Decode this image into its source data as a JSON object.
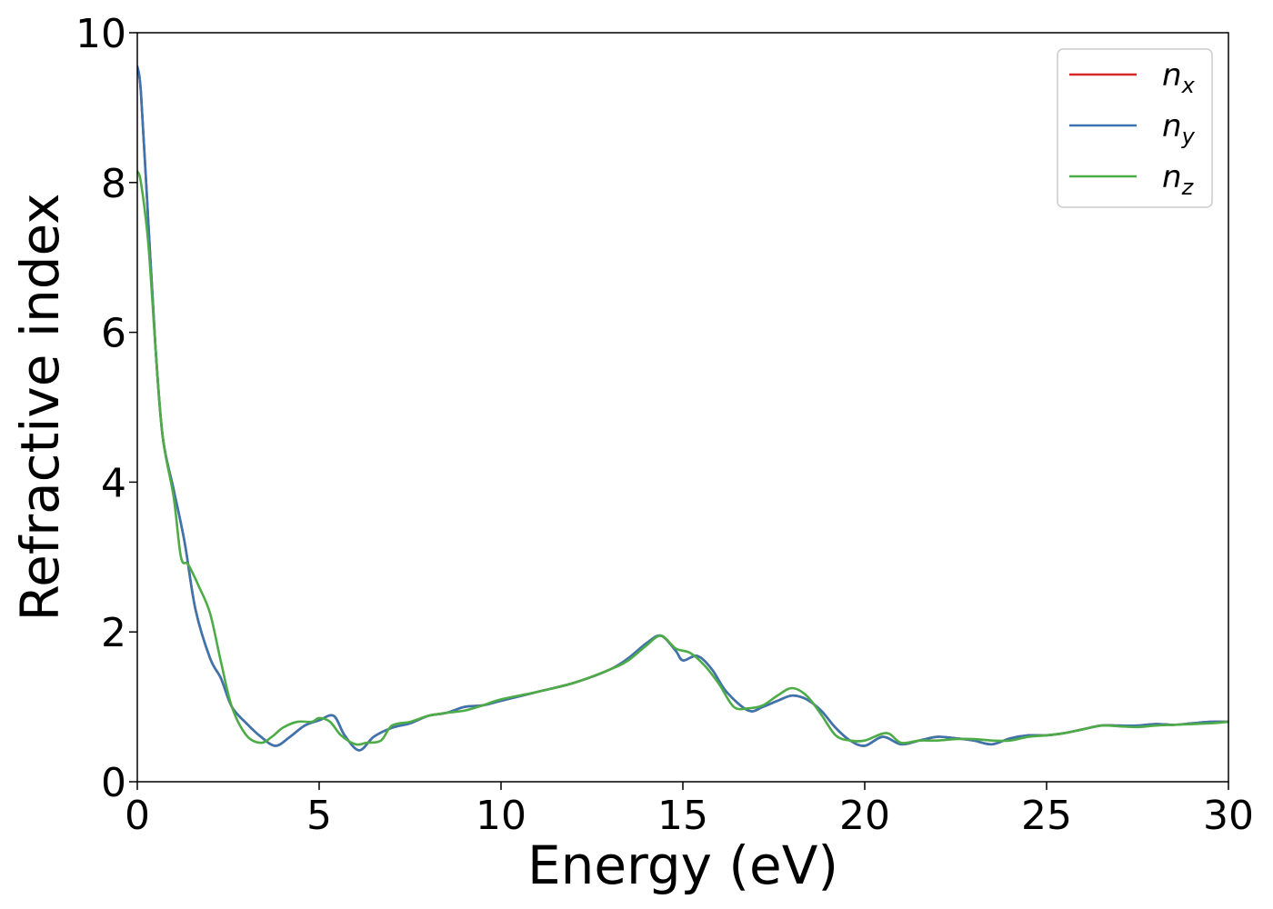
{
  "chart_data": {
    "type": "line",
    "title": "",
    "xlabel": "Energy (eV)",
    "ylabel": "Refractive index",
    "xlim": [
      0,
      30
    ],
    "ylim": [
      0,
      10
    ],
    "xticks": [
      0,
      5,
      10,
      15,
      20,
      25,
      30
    ],
    "yticks": [
      0,
      2,
      4,
      6,
      8,
      10
    ],
    "grid": false,
    "legend_position": "top-right",
    "series": [
      {
        "name": "n",
        "subscript": "x",
        "color": "#d62728",
        "x": [
          0,
          0.1,
          0.3,
          0.5,
          0.7,
          1.0,
          1.3,
          1.6,
          2.0,
          2.3,
          2.6,
          3.0,
          3.4,
          3.8,
          4.2,
          4.6,
          5.0,
          5.4,
          5.7,
          6.1,
          6.5,
          7.0,
          7.5,
          8.0,
          8.5,
          9.0,
          9.5,
          10.0,
          11.0,
          12.0,
          13.0,
          13.5,
          14.0,
          14.4,
          14.8,
          15.0,
          15.4,
          15.8,
          16.2,
          16.8,
          17.2,
          17.6,
          18.0,
          18.4,
          18.8,
          19.2,
          19.6,
          20.0,
          20.5,
          21.0,
          21.5,
          22.0,
          22.5,
          23.0,
          23.5,
          24.0,
          24.5,
          25.0,
          25.5,
          26.0,
          26.5,
          27.0,
          27.5,
          28.0,
          28.5,
          29.0,
          29.5,
          30.0
        ],
        "y": [
          9.55,
          9.2,
          7.5,
          5.8,
          4.6,
          3.9,
          3.2,
          2.3,
          1.65,
          1.38,
          1.0,
          0.78,
          0.6,
          0.48,
          0.6,
          0.75,
          0.82,
          0.88,
          0.62,
          0.42,
          0.6,
          0.72,
          0.78,
          0.88,
          0.92,
          1.0,
          1.02,
          1.08,
          1.2,
          1.32,
          1.5,
          1.65,
          1.85,
          1.95,
          1.75,
          1.62,
          1.68,
          1.5,
          1.2,
          0.95,
          1.0,
          1.08,
          1.15,
          1.1,
          0.95,
          0.72,
          0.55,
          0.48,
          0.6,
          0.5,
          0.55,
          0.6,
          0.58,
          0.55,
          0.5,
          0.58,
          0.62,
          0.62,
          0.65,
          0.7,
          0.75,
          0.75,
          0.75,
          0.77,
          0.76,
          0.78,
          0.8,
          0.8
        ]
      },
      {
        "name": "n",
        "subscript": "y",
        "color": "#3b75af",
        "x": [
          0,
          0.1,
          0.3,
          0.5,
          0.7,
          1.0,
          1.3,
          1.6,
          2.0,
          2.3,
          2.6,
          3.0,
          3.4,
          3.8,
          4.2,
          4.6,
          5.0,
          5.4,
          5.7,
          6.1,
          6.5,
          7.0,
          7.5,
          8.0,
          8.5,
          9.0,
          9.5,
          10.0,
          11.0,
          12.0,
          13.0,
          13.5,
          14.0,
          14.4,
          14.8,
          15.0,
          15.4,
          15.8,
          16.2,
          16.8,
          17.2,
          17.6,
          18.0,
          18.4,
          18.8,
          19.2,
          19.6,
          20.0,
          20.5,
          21.0,
          21.5,
          22.0,
          22.5,
          23.0,
          23.5,
          24.0,
          24.5,
          25.0,
          25.5,
          26.0,
          26.5,
          27.0,
          27.5,
          28.0,
          28.5,
          29.0,
          29.5,
          30.0
        ],
        "y": [
          9.55,
          9.2,
          7.5,
          5.8,
          4.6,
          3.9,
          3.2,
          2.3,
          1.65,
          1.38,
          1.0,
          0.78,
          0.6,
          0.48,
          0.6,
          0.75,
          0.82,
          0.88,
          0.62,
          0.42,
          0.6,
          0.72,
          0.78,
          0.88,
          0.92,
          1.0,
          1.02,
          1.08,
          1.2,
          1.32,
          1.5,
          1.65,
          1.85,
          1.95,
          1.75,
          1.62,
          1.68,
          1.5,
          1.2,
          0.95,
          1.0,
          1.08,
          1.15,
          1.1,
          0.95,
          0.72,
          0.55,
          0.48,
          0.6,
          0.5,
          0.55,
          0.6,
          0.58,
          0.55,
          0.5,
          0.58,
          0.62,
          0.62,
          0.65,
          0.7,
          0.75,
          0.75,
          0.75,
          0.77,
          0.76,
          0.78,
          0.8,
          0.8
        ]
      },
      {
        "name": "n",
        "subscript": "z",
        "color": "#4dac47",
        "x": [
          0,
          0.1,
          0.3,
          0.5,
          0.7,
          1.0,
          1.2,
          1.4,
          1.7,
          2.0,
          2.3,
          2.6,
          3.0,
          3.4,
          3.7,
          4.0,
          4.4,
          4.8,
          5.0,
          5.3,
          5.6,
          6.0,
          6.3,
          6.7,
          7.0,
          7.5,
          8.0,
          8.5,
          9.0,
          9.5,
          10.0,
          11.0,
          12.0,
          13.0,
          13.5,
          14.0,
          14.4,
          14.8,
          15.2,
          15.6,
          16.0,
          16.4,
          16.8,
          17.2,
          17.6,
          18.0,
          18.4,
          18.8,
          19.2,
          19.6,
          20.0,
          20.6,
          21.0,
          21.5,
          22.0,
          22.5,
          23.0,
          23.5,
          24.0,
          24.5,
          25.0,
          25.5,
          26.0,
          26.5,
          27.0,
          27.5,
          28.0,
          28.5,
          29.0,
          29.5,
          30.0
        ],
        "y": [
          8.15,
          8.0,
          7.2,
          5.8,
          4.6,
          3.8,
          3.0,
          2.9,
          2.6,
          2.25,
          1.6,
          1.0,
          0.62,
          0.52,
          0.6,
          0.72,
          0.8,
          0.8,
          0.85,
          0.8,
          0.62,
          0.5,
          0.52,
          0.55,
          0.75,
          0.8,
          0.88,
          0.92,
          0.95,
          1.02,
          1.1,
          1.2,
          1.32,
          1.5,
          1.62,
          1.82,
          1.95,
          1.78,
          1.72,
          1.55,
          1.3,
          1.0,
          0.98,
          1.02,
          1.15,
          1.25,
          1.15,
          0.9,
          0.62,
          0.55,
          0.55,
          0.65,
          0.52,
          0.55,
          0.55,
          0.57,
          0.57,
          0.55,
          0.55,
          0.6,
          0.62,
          0.65,
          0.7,
          0.75,
          0.74,
          0.73,
          0.75,
          0.76,
          0.77,
          0.78,
          0.8
        ]
      }
    ]
  }
}
